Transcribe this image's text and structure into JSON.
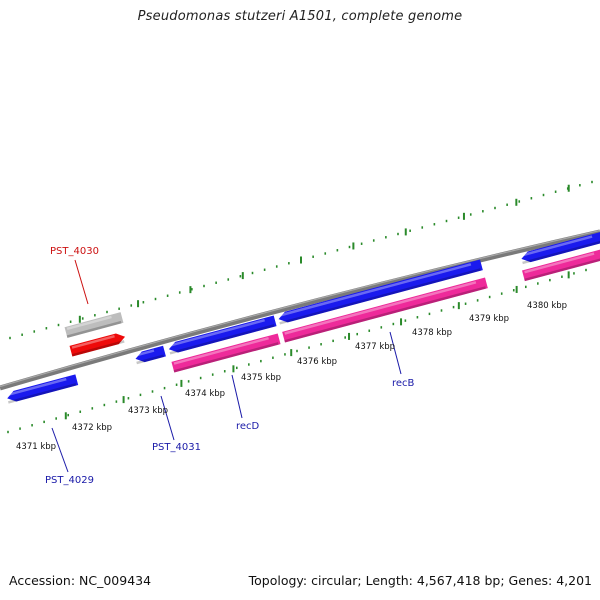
{
  "title": "Pseudomonas stutzeri A1501, complete genome",
  "footer": {
    "accession": "Accession: NC_009434",
    "summary": "Topology: circular; Length: 4,567,418 bp; Genes: 4,201"
  },
  "colors": {
    "gene_blue": "#1a1aee",
    "rna_pink": "#ee2a9a",
    "pseudo_gray": "#bdbdbd",
    "pseudo_red": "#ee0a0a",
    "tick_green": "#2a8a2a",
    "backbone": "#7a7a7a",
    "label_blue": "#1a1aa8",
    "label_red": "#cc1111"
  },
  "ticks": [
    {
      "label": "4371 kbp"
    },
    {
      "label": "4372 kbp"
    },
    {
      "label": "4373 kbp"
    },
    {
      "label": "4374 kbp"
    },
    {
      "label": "4375 kbp"
    },
    {
      "label": "4376 kbp"
    },
    {
      "label": "4377 kbp"
    },
    {
      "label": "4378 kbp"
    },
    {
      "label": "4379 kbp"
    },
    {
      "label": "4380 kbp"
    }
  ],
  "gene_labels": [
    {
      "name": "PST_4030",
      "color": "red"
    },
    {
      "name": "PST_4029",
      "color": "blue"
    },
    {
      "name": "PST_4031",
      "color": "blue"
    },
    {
      "name": "recD",
      "color": "blue"
    },
    {
      "name": "recB",
      "color": "blue"
    }
  ]
}
